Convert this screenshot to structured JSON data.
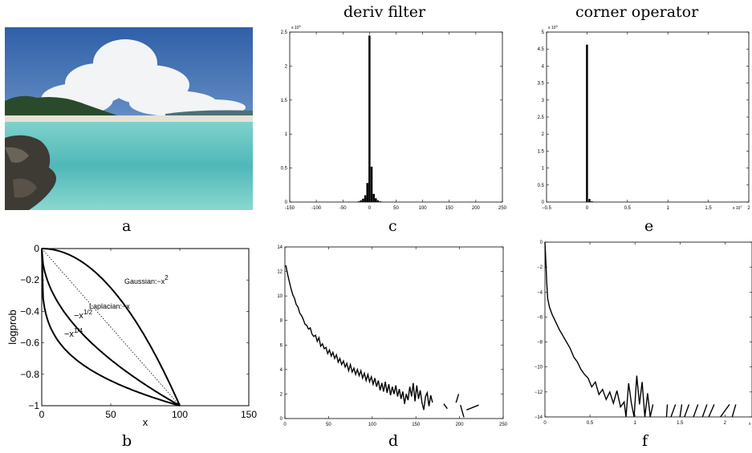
{
  "column_titles": {
    "c": "deriv filter",
    "e": "corner operator"
  },
  "panel_labels": {
    "a": "a",
    "b": "b",
    "c": "c",
    "d": "d",
    "e": "e",
    "f": "f"
  },
  "photo": {
    "description_icon": "beach-photo-icon",
    "colors": {
      "sky": "#3f6fb3",
      "cloud": "#f4f6f8",
      "sea": "#5fc2c0",
      "sand": "#e6e2d4",
      "rock": "#3e3a34",
      "trees": "#2a4a2c"
    }
  },
  "chart_data": [
    {
      "id": "b",
      "type": "line",
      "xlabel": "x",
      "ylabel": "logprob",
      "xlim": [
        0,
        150
      ],
      "ylim": [
        -1,
        0
      ],
      "xticks": [
        0,
        50,
        100,
        150
      ],
      "yticks": [
        0,
        -0.2,
        -0.4,
        -0.6,
        -0.8,
        -1
      ],
      "ytick_labels": [
        "0",
        "−0.2",
        "−0.4",
        "−0.6",
        "−0.8",
        "−1"
      ],
      "curves": [
        {
          "name": "Gaussian",
          "label": "Gaussian:−x",
          "label_sup": "2",
          "exponent": 2,
          "style": "solid"
        },
        {
          "name": "Laplacian",
          "label": "Laplacian:−x",
          "label_sup": "",
          "exponent": 1,
          "style": "dotted"
        },
        {
          "name": "sqrt",
          "label": "−x",
          "label_sup": "1/2",
          "exponent": 0.5,
          "style": "solid"
        },
        {
          "name": "quarter",
          "label": "−x",
          "label_sup": "1/4",
          "exponent": 0.25,
          "style": "solid"
        }
      ]
    },
    {
      "id": "c",
      "type": "bar",
      "xlim": [
        -150,
        250
      ],
      "ylim": [
        0,
        250000
      ],
      "xticks": [
        -150,
        -100,
        -50,
        0,
        50,
        100,
        150,
        200,
        250
      ],
      "yticks": [
        0,
        0.5,
        1,
        1.5,
        2,
        2.5
      ],
      "ytick_labels": [
        "0",
        "0.5",
        "1",
        "1.5",
        "2",
        "2.5"
      ],
      "y_multiplier": "x 10",
      "y_multiplier_exp": "5",
      "bins": [
        {
          "x": -20,
          "y": 1000
        },
        {
          "x": -16,
          "y": 2500
        },
        {
          "x": -12,
          "y": 5000
        },
        {
          "x": -8,
          "y": 10000
        },
        {
          "x": -4,
          "y": 28000
        },
        {
          "x": 0,
          "y": 245000
        },
        {
          "x": 4,
          "y": 52000
        },
        {
          "x": 8,
          "y": 12000
        },
        {
          "x": 12,
          "y": 5500
        },
        {
          "x": 16,
          "y": 2500
        },
        {
          "x": 20,
          "y": 1000
        }
      ]
    },
    {
      "id": "d",
      "type": "line",
      "xlim": [
        0,
        250
      ],
      "ylim": [
        0,
        14
      ],
      "xticks": [
        0,
        50,
        100,
        150,
        200,
        250
      ],
      "yticks": [
        0,
        2,
        4,
        6,
        8,
        10,
        12,
        14
      ],
      "x": [
        1,
        3,
        5,
        7,
        9,
        11,
        13,
        15,
        17,
        19,
        21,
        23,
        25,
        27,
        29,
        31,
        33,
        35,
        37,
        39,
        41,
        43,
        45,
        47,
        49,
        51,
        53,
        55,
        57,
        59,
        61,
        63,
        65,
        67,
        69,
        71,
        73,
        75,
        77,
        79,
        81,
        83,
        85,
        87,
        89,
        91,
        93,
        95,
        97,
        99,
        101,
        103,
        105,
        107,
        109,
        111,
        113,
        115,
        117,
        119,
        121,
        123,
        125,
        127,
        129,
        131,
        133,
        135,
        137,
        139,
        141,
        143,
        145,
        147,
        149,
        151,
        153,
        155,
        157,
        159,
        161,
        163,
        165,
        167,
        169
      ],
      "y": [
        12.5,
        11.8,
        11.2,
        10.6,
        10.1,
        9.8,
        9.3,
        9.1,
        8.6,
        8.4,
        8.1,
        7.7,
        7.6,
        7.3,
        7.4,
        6.9,
        6.7,
        6.8,
        6.3,
        6.6,
        5.9,
        6.1,
        5.7,
        5.8,
        5.3,
        5.6,
        5.1,
        5.4,
        4.9,
        5.2,
        4.6,
        4.9,
        4.4,
        4.7,
        4.2,
        4.5,
        3.9,
        4.4,
        3.8,
        4.1,
        3.6,
        4.0,
        3.5,
        3.9,
        3.3,
        3.7,
        3.1,
        3.6,
        3.0,
        3.4,
        2.8,
        3.3,
        2.6,
        3.1,
        2.3,
        2.9,
        2.2,
        3.0,
        2.1,
        2.8,
        1.9,
        2.6,
        2.0,
        2.7,
        1.8,
        2.4,
        1.6,
        2.2,
        1.2,
        2.0,
        1.5,
        2.6,
        1.8,
        2.9,
        1.4,
        2.7,
        1.6,
        2.3,
        1.3,
        0.7,
        1.8,
        2.1,
        1.0,
        1.9,
        1.3
      ],
      "tail": [
        {
          "x": 182,
          "y": 1.2
        },
        {
          "x": 186,
          "y": 0.8
        },
        {
          "x": 196,
          "y": 1.3
        },
        {
          "x": 199,
          "y": 2.0
        },
        {
          "x": 201,
          "y": 1.1
        },
        {
          "x": 205,
          "y": 0.1
        },
        {
          "x": 208,
          "y": 0.7
        },
        {
          "x": 222,
          "y": 1.1
        }
      ]
    },
    {
      "id": "e",
      "type": "bar",
      "xlim": [
        -0.5,
        2
      ],
      "ylim": [
        0,
        500000
      ],
      "xticks": [
        -0.5,
        0,
        0.5,
        1,
        1.5,
        2
      ],
      "xtick_labels": [
        "−0.5",
        "0",
        "0.5",
        "1",
        "1.5",
        "2"
      ],
      "yticks": [
        0,
        0.5,
        1,
        1.5,
        2,
        2.5,
        3,
        3.5,
        4,
        4.5,
        5
      ],
      "ytick_labels": [
        "0",
        "0.5",
        "1",
        "1.5",
        "2",
        "2.5",
        "3",
        "3.5",
        "4",
        "4.5",
        "5"
      ],
      "y_multiplier": "x 10",
      "y_multiplier_exp": "5",
      "x_multiplier": "x 10",
      "x_multiplier_exp": "7",
      "bins": [
        {
          "x": 0.0,
          "y": 463000
        },
        {
          "x": 0.03,
          "y": 9000
        },
        {
          "x": 0.06,
          "y": 2000
        }
      ]
    },
    {
      "id": "f",
      "type": "line",
      "xlim": [
        0,
        2.3
      ],
      "ylim": [
        -14,
        0
      ],
      "xticks": [
        0,
        0.5,
        1,
        1.5,
        2
      ],
      "yticks": [
        0,
        -2,
        -4,
        -6,
        -8,
        -10,
        -12,
        -14
      ],
      "ytick_labels": [
        "0",
        "−2",
        "−4",
        "−6",
        "−8",
        "−10",
        "−12",
        "−14"
      ],
      "x_multiplier": "x 10",
      "x": [
        0.0,
        0.01,
        0.02,
        0.03,
        0.05,
        0.08,
        0.12,
        0.16,
        0.2,
        0.24,
        0.28,
        0.32,
        0.36,
        0.4,
        0.44,
        0.48,
        0.52,
        0.56,
        0.6,
        0.64,
        0.68,
        0.72,
        0.76,
        0.8,
        0.84,
        0.88,
        0.9,
        0.93,
        0.96,
        0.99,
        1.02,
        1.05,
        1.08,
        1.11,
        1.14,
        1.17,
        1.2
      ],
      "y": [
        0,
        -1.5,
        -3.2,
        -4.5,
        -5.2,
        -5.8,
        -6.4,
        -7.0,
        -7.5,
        -8.0,
        -8.5,
        -9.2,
        -9.6,
        -10.2,
        -10.6,
        -10.9,
        -11.6,
        -11.2,
        -12.2,
        -11.8,
        -12.6,
        -12.0,
        -12.9,
        -11.9,
        -13.2,
        -12.8,
        -14.0,
        -11.3,
        -12.9,
        -14.0,
        -10.7,
        -13.0,
        -11.2,
        -14.0,
        -12.1,
        -14.0,
        -13.0
      ],
      "tail": [
        {
          "x": 1.35,
          "y": -14
        },
        {
          "x": 1.36,
          "y": -13
        },
        {
          "x": 1.4,
          "y": -14
        },
        {
          "x": 1.45,
          "y": -13
        },
        {
          "x": 1.5,
          "y": -14
        },
        {
          "x": 1.52,
          "y": -13
        },
        {
          "x": 1.55,
          "y": -14
        },
        {
          "x": 1.6,
          "y": -13
        },
        {
          "x": 1.65,
          "y": -14
        },
        {
          "x": 1.7,
          "y": -13
        },
        {
          "x": 1.75,
          "y": -14
        },
        {
          "x": 1.8,
          "y": -13
        },
        {
          "x": 1.82,
          "y": -14
        },
        {
          "x": 1.88,
          "y": -13
        },
        {
          "x": 1.95,
          "y": -14
        },
        {
          "x": 2.05,
          "y": -13
        },
        {
          "x": 2.08,
          "y": -14
        },
        {
          "x": 2.12,
          "y": -13
        }
      ]
    }
  ]
}
